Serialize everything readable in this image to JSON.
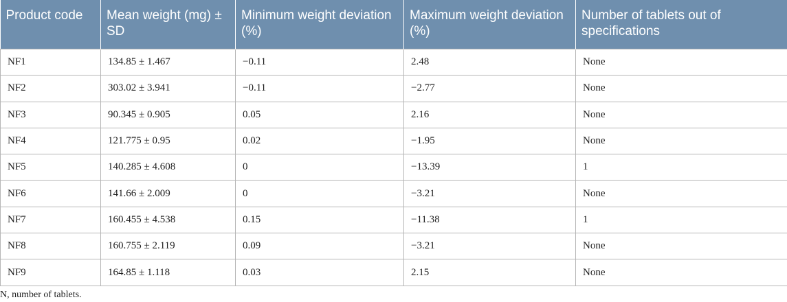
{
  "table": {
    "headers": [
      "Product code",
      "Mean weight (mg) ± SD",
      "Minimum weight deviation (%)",
      "Maximum weight deviation (%)",
      "Number of tablets out of specifications"
    ],
    "rows": [
      [
        "NF1",
        "134.85 ± 1.467",
        "−0.11",
        "2.48",
        "None"
      ],
      [
        "NF2",
        "303.02 ± 3.941",
        "−0.11",
        "−2.77",
        "None"
      ],
      [
        "NF3",
        "90.345 ± 0.905",
        "0.05",
        "2.16",
        "None"
      ],
      [
        "NF4",
        "121.775 ± 0.95",
        "0.02",
        "−1.95",
        "None"
      ],
      [
        "NF5",
        "140.285 ± 4.608",
        "0",
        "−13.39",
        "1"
      ],
      [
        "NF6",
        "141.66 ± 2.009",
        "0",
        "−3.21",
        "None"
      ],
      [
        "NF7",
        "160.455 ± 4.538",
        "0.15",
        "−11.38",
        "1"
      ],
      [
        "NF8",
        "160.755 ± 2.119",
        "0.09",
        "−3.21",
        "None"
      ],
      [
        "NF9",
        "164.85 ± 1.118",
        "0.03",
        "2.15",
        "None"
      ]
    ]
  },
  "footnote": "N, number of tablets.",
  "colors": {
    "header_bg": "#6f8fae",
    "header_text": "#ffffff",
    "border": "#b5b5b5"
  }
}
